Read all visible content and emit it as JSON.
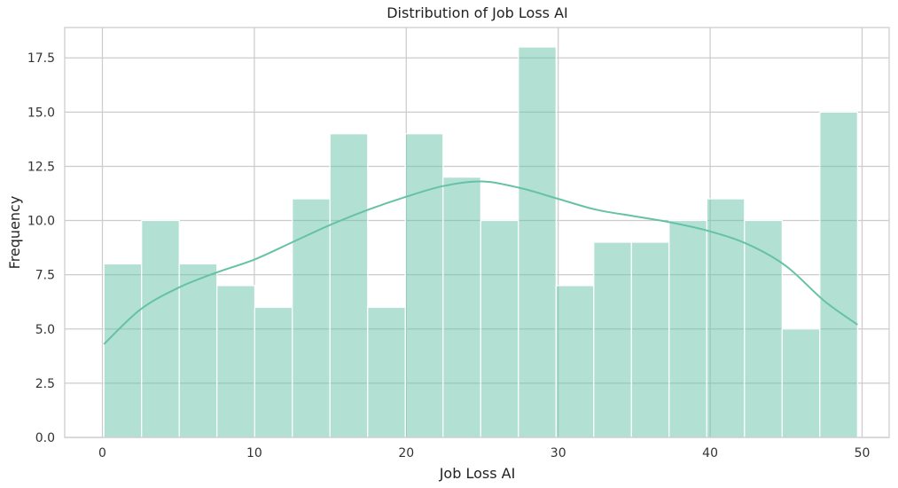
{
  "chart_data": {
    "type": "bar",
    "title": "Distribution of Job Loss AI",
    "xlabel": "Job Loss AI",
    "ylabel": "Frequency",
    "xlim": [
      -2.48,
      51.78
    ],
    "ylim": [
      0,
      18.9
    ],
    "x_ticks": [
      0,
      10,
      20,
      30,
      40,
      50
    ],
    "x_tick_labels": [
      "0",
      "10",
      "20",
      "30",
      "40",
      "50"
    ],
    "y_ticks": [
      0,
      2.5,
      5,
      7.5,
      10,
      12.5,
      15,
      17.5
    ],
    "y_tick_labels": [
      "0.0",
      "2.5",
      "5.0",
      "7.5",
      "10.0",
      "12.5",
      "15.0",
      "17.5"
    ],
    "bins": [
      {
        "x0": 0.1,
        "x1": 2.58,
        "count": 8
      },
      {
        "x0": 2.58,
        "x1": 5.06,
        "count": 10
      },
      {
        "x0": 5.06,
        "x1": 7.54,
        "count": 8
      },
      {
        "x0": 7.54,
        "x1": 10.02,
        "count": 7
      },
      {
        "x0": 10.02,
        "x1": 12.5,
        "count": 6
      },
      {
        "x0": 12.5,
        "x1": 14.98,
        "count": 11
      },
      {
        "x0": 14.98,
        "x1": 17.46,
        "count": 14
      },
      {
        "x0": 17.46,
        "x1": 19.94,
        "count": 6
      },
      {
        "x0": 19.94,
        "x1": 22.42,
        "count": 14
      },
      {
        "x0": 22.42,
        "x1": 24.9,
        "count": 12
      },
      {
        "x0": 24.9,
        "x1": 27.38,
        "count": 10
      },
      {
        "x0": 27.38,
        "x1": 29.86,
        "count": 18
      },
      {
        "x0": 29.86,
        "x1": 32.34,
        "count": 7
      },
      {
        "x0": 32.34,
        "x1": 34.82,
        "count": 9
      },
      {
        "x0": 34.82,
        "x1": 37.3,
        "count": 9
      },
      {
        "x0": 37.3,
        "x1": 39.78,
        "count": 10
      },
      {
        "x0": 39.78,
        "x1": 42.26,
        "count": 11
      },
      {
        "x0": 42.26,
        "x1": 44.74,
        "count": 10
      },
      {
        "x0": 44.74,
        "x1": 47.22,
        "count": 5
      },
      {
        "x0": 47.22,
        "x1": 49.7,
        "count": 15
      }
    ],
    "kde": {
      "x": [
        0.1,
        2.5,
        5,
        7.5,
        10,
        12.5,
        15,
        17.5,
        20,
        22.5,
        25,
        27.5,
        30,
        32.5,
        35,
        37.5,
        40,
        42.5,
        45,
        47.5,
        49.7
      ],
      "y": [
        4.3,
        5.9,
        6.9,
        7.6,
        8.2,
        9.0,
        9.8,
        10.5,
        11.1,
        11.6,
        11.8,
        11.5,
        11.0,
        10.5,
        10.2,
        9.9,
        9.5,
        8.9,
        7.9,
        6.3,
        5.2
      ]
    },
    "grid": true,
    "legend": "none",
    "colors": {
      "bar_fill": "#66c2a5",
      "bar_opacity": 0.5,
      "kde_line": "#66c2a5",
      "grid": "#cccccc",
      "spine": "#cccccc"
    }
  }
}
